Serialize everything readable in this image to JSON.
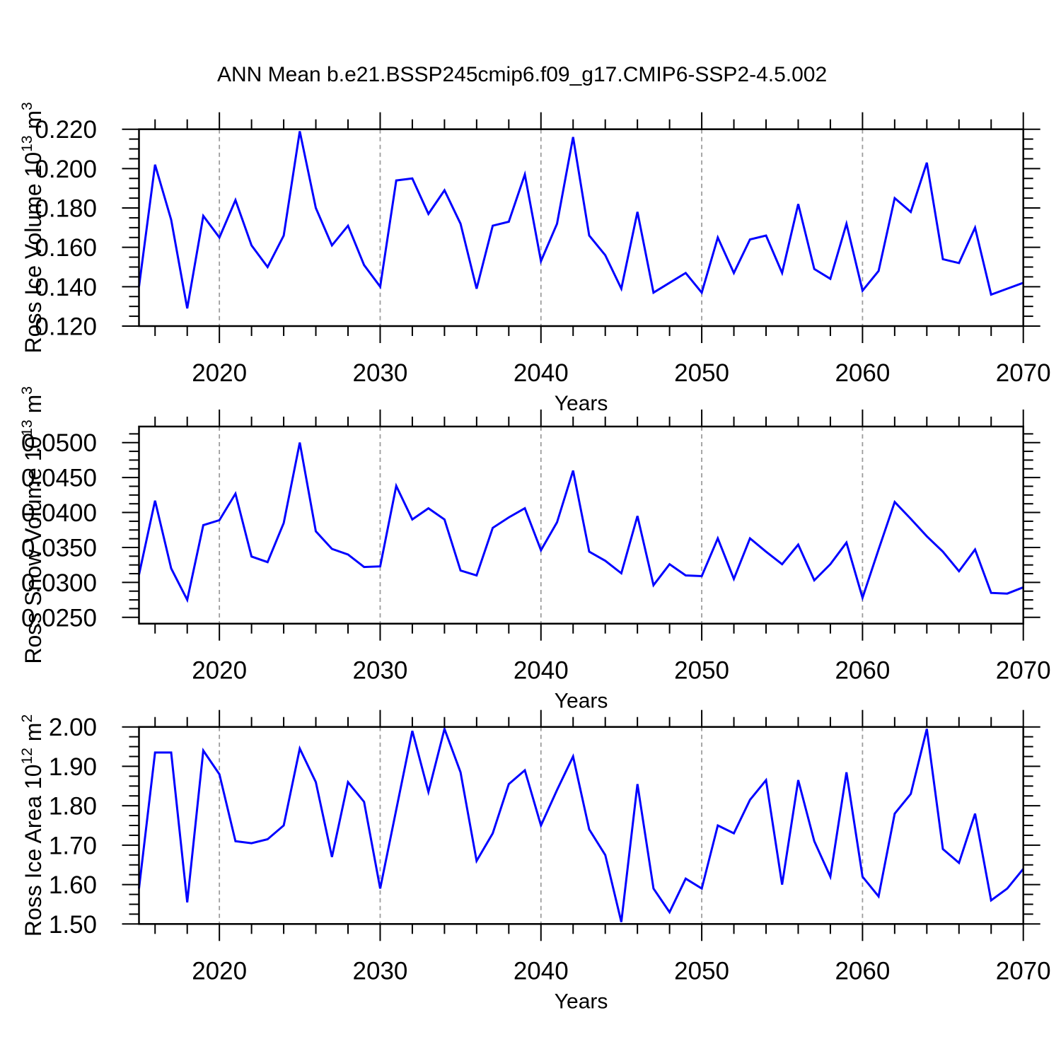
{
  "title": "ANN Mean b.e21.BSSP245cmip6.f09_g17.CMIP6-SSP2-4.5.002",
  "line_color": "#0000ff",
  "grid_color": "#9c9c9c",
  "axis_color": "#000000",
  "chart_data": [
    {
      "type": "line",
      "name": "ross-ice-volume",
      "title": "",
      "xlabel": "Years",
      "ylabel": "Ross Ice Volume 10^13 m^3",
      "ylabel_parts": [
        {
          "t": "Ross Ice Volume 10",
          "sup": false
        },
        {
          "t": "13",
          "sup": true
        },
        {
          "t": " m",
          "sup": false
        },
        {
          "t": "3",
          "sup": true
        }
      ],
      "x": [
        2015,
        2016,
        2017,
        2018,
        2019,
        2020,
        2021,
        2022,
        2023,
        2024,
        2025,
        2026,
        2027,
        2028,
        2029,
        2030,
        2031,
        2032,
        2033,
        2034,
        2035,
        2036,
        2037,
        2038,
        2039,
        2040,
        2041,
        2042,
        2043,
        2044,
        2045,
        2046,
        2047,
        2048,
        2049,
        2050,
        2051,
        2052,
        2053,
        2054,
        2055,
        2056,
        2057,
        2058,
        2059,
        2060,
        2061,
        2062,
        2063,
        2064,
        2065,
        2066,
        2067,
        2068,
        2069,
        2070
      ],
      "values": [
        0.14,
        0.202,
        0.174,
        0.129,
        0.176,
        0.165,
        0.184,
        0.161,
        0.15,
        0.166,
        0.219,
        0.18,
        0.161,
        0.171,
        0.151,
        0.14,
        0.194,
        0.195,
        0.177,
        0.189,
        0.172,
        0.139,
        0.171,
        0.173,
        0.197,
        0.153,
        0.172,
        0.216,
        0.166,
        0.156,
        0.139,
        0.178,
        0.137,
        0.142,
        0.147,
        0.137,
        0.165,
        0.147,
        0.164,
        0.166,
        0.147,
        0.182,
        0.149,
        0.144,
        0.172,
        0.138,
        0.148,
        0.185,
        0.178,
        0.203,
        0.154,
        0.152,
        0.17,
        0.136,
        0.139,
        0.142
      ],
      "xlim": [
        2015,
        2070
      ],
      "ylim": [
        0.12,
        0.22
      ],
      "yticks": [
        0.12,
        0.14,
        0.16,
        0.18,
        0.2,
        0.22
      ],
      "ytick_decimals": 3,
      "y_minor_step": 0.005,
      "xticks": [
        2020,
        2030,
        2040,
        2050,
        2060,
        2070
      ],
      "x_minor_step": 2,
      "grid_x": [
        2020,
        2030,
        2040,
        2050,
        2060
      ],
      "legend": "none",
      "grid": "vertical-dashed"
    },
    {
      "type": "line",
      "name": "ross-snow-volume",
      "title": "",
      "xlabel": "Years",
      "ylabel": "Ross Snow Volume 10^13 m^3",
      "ylabel_parts": [
        {
          "t": "Ross Snow Volume 10",
          "sup": false
        },
        {
          "t": "13",
          "sup": true
        },
        {
          "t": " m",
          "sup": false
        },
        {
          "t": "3",
          "sup": true
        }
      ],
      "x": [
        2015,
        2016,
        2017,
        2018,
        2019,
        2020,
        2021,
        2022,
        2023,
        2024,
        2025,
        2026,
        2027,
        2028,
        2029,
        2030,
        2031,
        2032,
        2033,
        2034,
        2035,
        2036,
        2037,
        2038,
        2039,
        2040,
        2041,
        2042,
        2043,
        2044,
        2045,
        2046,
        2047,
        2048,
        2049,
        2050,
        2051,
        2052,
        2053,
        2054,
        2055,
        2056,
        2057,
        2058,
        2059,
        2060,
        2061,
        2062,
        2063,
        2064,
        2065,
        2066,
        2067,
        2068,
        2069,
        2070
      ],
      "values": [
        0.0311,
        0.0417,
        0.032,
        0.0275,
        0.0382,
        0.0389,
        0.0427,
        0.0337,
        0.0329,
        0.0385,
        0.05,
        0.0373,
        0.0348,
        0.034,
        0.0322,
        0.0323,
        0.0438,
        0.039,
        0.0406,
        0.039,
        0.0317,
        0.031,
        0.0378,
        0.0393,
        0.0406,
        0.0346,
        0.0386,
        0.046,
        0.0344,
        0.0331,
        0.0313,
        0.0395,
        0.0296,
        0.0326,
        0.031,
        0.0309,
        0.0363,
        0.0305,
        0.0363,
        0.0344,
        0.0326,
        0.0354,
        0.0303,
        0.0326,
        0.0357,
        0.0278,
        0.0347,
        0.0415,
        0.0391,
        0.0366,
        0.0344,
        0.0316,
        0.0347,
        0.0285,
        0.0284,
        0.0293
      ],
      "xlim": [
        2015,
        2070
      ],
      "ylim": [
        0.0241,
        0.0523
      ],
      "yticks": [
        0.025,
        0.03,
        0.035,
        0.04,
        0.045,
        0.05
      ],
      "ytick_decimals": 4,
      "y_minor_step": 0.00125,
      "xticks": [
        2020,
        2030,
        2040,
        2050,
        2060,
        2070
      ],
      "x_minor_step": 2,
      "grid_x": [
        2020,
        2030,
        2040,
        2050,
        2060
      ],
      "legend": "none",
      "grid": "vertical-dashed"
    },
    {
      "type": "line",
      "name": "ross-ice-area",
      "title": "",
      "xlabel": "Years",
      "ylabel": "Ross Ice Area 10^12 m^2",
      "ylabel_parts": [
        {
          "t": "Ross Ice Area 10",
          "sup": false
        },
        {
          "t": "12",
          "sup": true
        },
        {
          "t": " m",
          "sup": false
        },
        {
          "t": "2",
          "sup": true
        }
      ],
      "x": [
        2015,
        2016,
        2017,
        2018,
        2019,
        2020,
        2021,
        2022,
        2023,
        2024,
        2025,
        2026,
        2027,
        2028,
        2029,
        2030,
        2031,
        2032,
        2033,
        2034,
        2035,
        2036,
        2037,
        2038,
        2039,
        2040,
        2041,
        2042,
        2043,
        2044,
        2045,
        2046,
        2047,
        2048,
        2049,
        2050,
        2051,
        2052,
        2053,
        2054,
        2055,
        2056,
        2057,
        2058,
        2059,
        2060,
        2061,
        2062,
        2063,
        2064,
        2065,
        2066,
        2067,
        2068,
        2069,
        2070
      ],
      "values": [
        1.59,
        1.935,
        1.935,
        1.555,
        1.94,
        1.88,
        1.71,
        1.705,
        1.715,
        1.75,
        1.945,
        1.86,
        1.67,
        1.86,
        1.81,
        1.59,
        1.79,
        1.99,
        1.835,
        1.995,
        1.885,
        1.66,
        1.73,
        1.855,
        1.89,
        1.75,
        1.84,
        1.925,
        1.74,
        1.675,
        1.505,
        1.855,
        1.59,
        1.53,
        1.615,
        1.59,
        1.75,
        1.73,
        1.815,
        1.865,
        1.6,
        1.865,
        1.71,
        1.62,
        1.885,
        1.62,
        1.57,
        1.78,
        1.83,
        1.995,
        1.69,
        1.655,
        1.78,
        1.56,
        1.59,
        1.64
      ],
      "xlim": [
        2015,
        2070
      ],
      "ylim": [
        1.5,
        2.0
      ],
      "yticks": [
        1.5,
        1.6,
        1.7,
        1.8,
        1.9,
        2.0
      ],
      "ytick_decimals": 2,
      "y_minor_step": 0.025,
      "xticks": [
        2020,
        2030,
        2040,
        2050,
        2060,
        2070
      ],
      "x_minor_step": 2,
      "grid_x": [
        2020,
        2030,
        2040,
        2050,
        2060
      ],
      "legend": "none",
      "grid": "vertical-dashed"
    }
  ]
}
